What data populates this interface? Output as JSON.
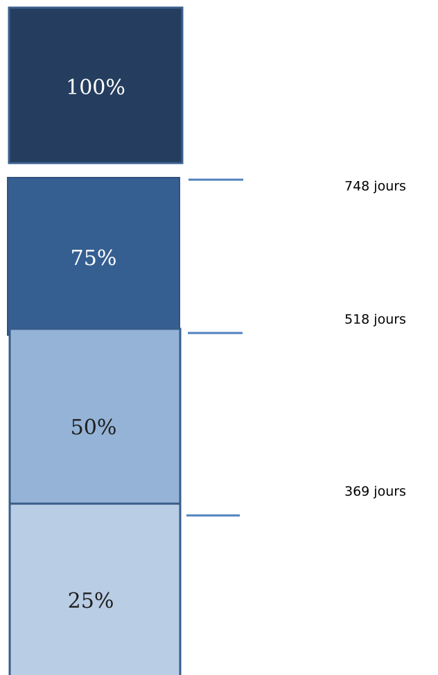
{
  "boxes": [
    {
      "label": "100%"
    },
    {
      "label": "75%"
    },
    {
      "label": "50%"
    },
    {
      "label": "25%"
    }
  ],
  "annotations": [
    {
      "label": "748 jours"
    },
    {
      "label": "518 jours"
    },
    {
      "label": "369 jours"
    }
  ]
}
